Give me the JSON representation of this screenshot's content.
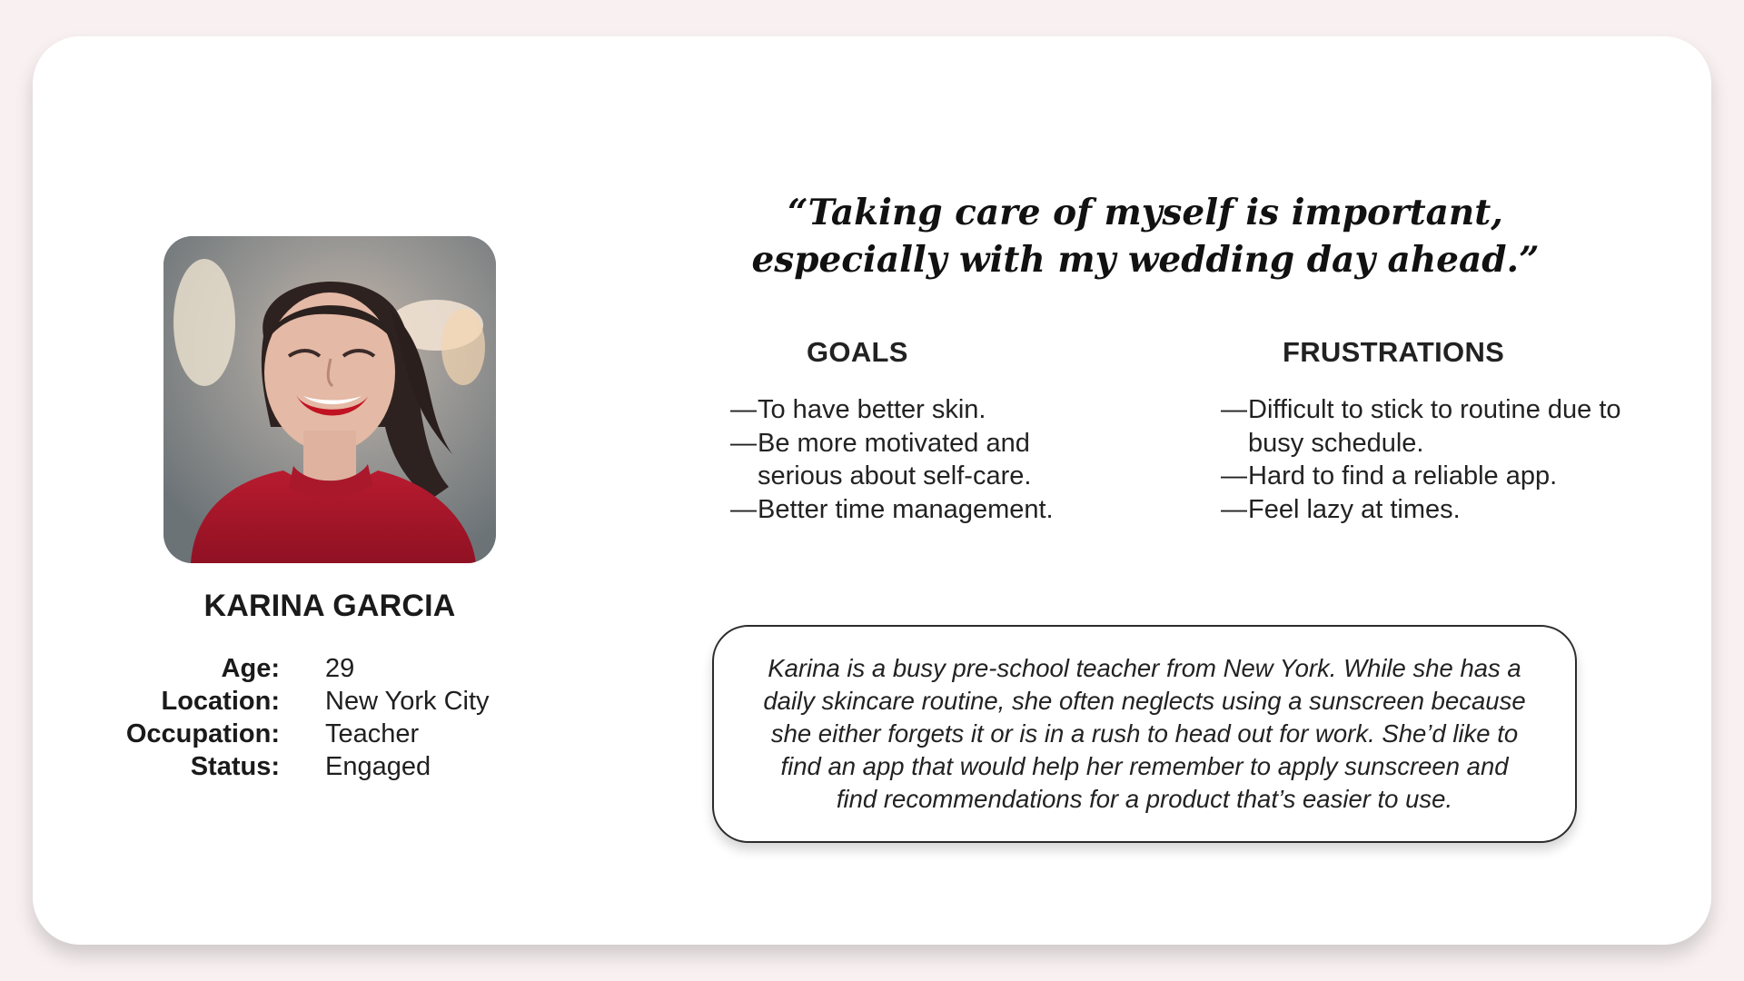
{
  "persona": {
    "name": "KARINA GARCIA",
    "details": [
      {
        "label": "Age:",
        "value": "29"
      },
      {
        "label": "Location:",
        "value": "New York City"
      },
      {
        "label": "Occupation:",
        "value": "Teacher"
      },
      {
        "label": "Status:",
        "value": "Engaged"
      }
    ]
  },
  "quote": "“Taking care of myself is important, especially with my wedding day ahead.”",
  "goals": {
    "heading": "GOALS",
    "items": [
      {
        "dash": "—",
        "text": "To have better skin."
      },
      {
        "dash": "—",
        "text": "Be more motivated and serious about self-care."
      },
      {
        "dash": "—",
        "text": "Better time management."
      }
    ]
  },
  "frustrations": {
    "heading": "FRUSTRATIONS",
    "items": [
      {
        "dash": "—",
        "text": "Difficult to stick to routine due to busy schedule."
      },
      {
        "dash": "—",
        "text": "Hard to find a reliable app."
      },
      {
        "dash": "—",
        "text": "Feel lazy at times."
      }
    ]
  },
  "summary": "Karina is a busy pre-school teacher from New York. While she has a daily skincare routine, she often neglects using a sunscreen because she either forgets it or is in a rush to head out for work. She’d like to find an app that would help her remember to apply sunscreen and find recommendations for a product that’s easier to use.",
  "colors": {
    "background": "#f8f0f1",
    "card": "#ffffff",
    "text": "#222222",
    "sweater": "#a8142a"
  }
}
